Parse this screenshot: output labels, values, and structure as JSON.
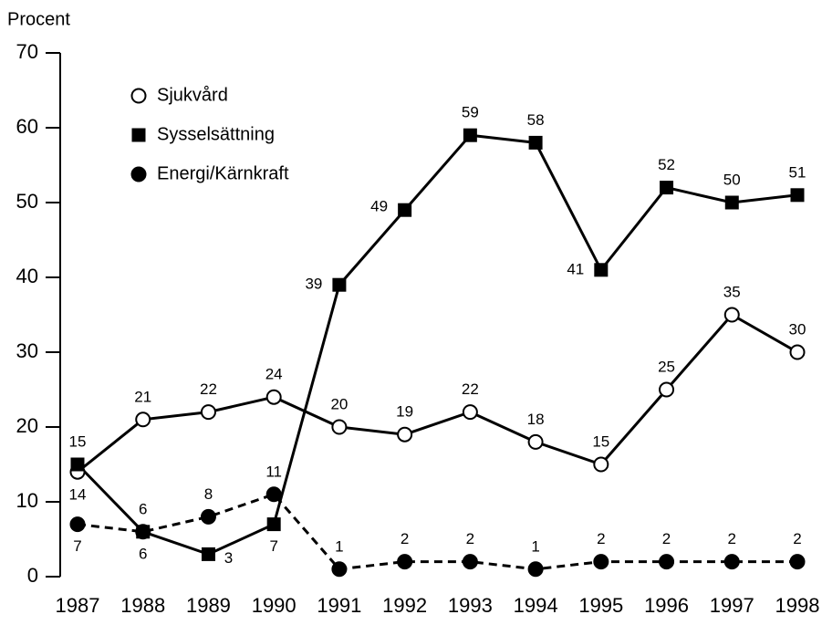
{
  "chart_data": {
    "type": "line",
    "y_label": "Procent",
    "categories": [
      "1987",
      "1988",
      "1989",
      "1990",
      "1991",
      "1992",
      "1993",
      "1994",
      "1995",
      "1996",
      "1997",
      "1998"
    ],
    "series": [
      {
        "name": "Sjukvård",
        "color": "#000000",
        "marker": "open-circle",
        "dashed": false,
        "values": [
          14,
          21,
          22,
          24,
          20,
          19,
          22,
          18,
          15,
          25,
          35,
          30
        ]
      },
      {
        "name": "Sysselsättning",
        "color": "#000000",
        "marker": "square",
        "dashed": false,
        "values": [
          15,
          6,
          3,
          7,
          39,
          49,
          59,
          58,
          41,
          52,
          50,
          51
        ]
      },
      {
        "name": "Energi/Kärnkraft",
        "color": "#000000",
        "marker": "filled-circle",
        "dashed": true,
        "values": [
          7,
          6,
          8,
          11,
          1,
          2,
          2,
          1,
          2,
          2,
          2,
          2
        ]
      }
    ],
    "ylim": [
      0,
      70
    ],
    "yticks": [
      0,
      10,
      20,
      30,
      40,
      50,
      60,
      70
    ],
    "grid": false
  }
}
